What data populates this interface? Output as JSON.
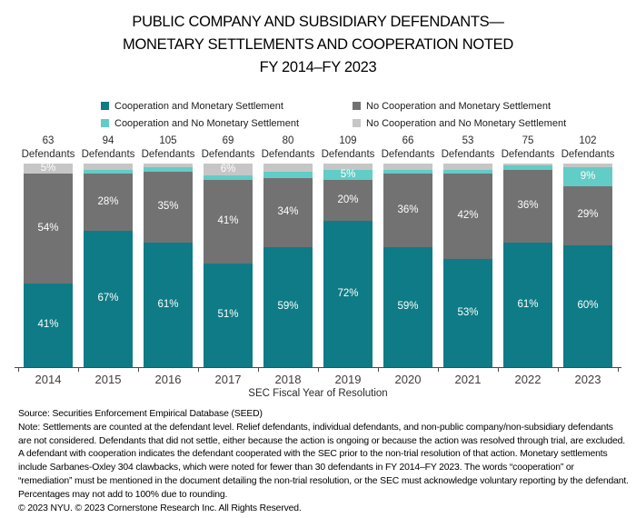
{
  "title": "PUBLIC COMPANY AND SUBSIDIARY DEFENDANTS—\nMONETARY SETTLEMENTS AND COOPERATION NOTED\nFY 2014–FY 2023",
  "chart_data": {
    "type": "bar",
    "subtype": "stacked-100-percent",
    "title": "PUBLIC COMPANY AND SUBSIDIARY DEFENDANTS—MONETARY SETTLEMENTS AND COOPERATION NOTED FY 2014–FY 2023",
    "xlabel": "SEC Fiscal Year of Resolution",
    "ylabel": "",
    "ylim": [
      0,
      100
    ],
    "grid": false,
    "legend_position": "top",
    "categories": [
      "2014",
      "2015",
      "2016",
      "2017",
      "2018",
      "2019",
      "2020",
      "2021",
      "2022",
      "2023"
    ],
    "defendants": [
      63,
      94,
      105,
      69,
      80,
      109,
      66,
      53,
      75,
      102
    ],
    "defendants_word": "Defendants",
    "stack_order_bottom_to_top": [
      "Cooperation and Monetary Settlement",
      "No Cooperation and Monetary Settlement",
      "Cooperation and No Monetary Settlement",
      "No Cooperation and No Monetary Settlement"
    ],
    "series": [
      {
        "name": "Cooperation and Monetary Settlement",
        "color": "#0e7b86",
        "values": [
          41,
          67,
          61,
          51,
          59,
          72,
          59,
          53,
          61,
          60
        ],
        "labels": [
          "41%",
          "67%",
          "61%",
          "51%",
          "59%",
          "72%",
          "59%",
          "53%",
          "61%",
          "60%"
        ]
      },
      {
        "name": "No Cooperation and Monetary Settlement",
        "color": "#727272",
        "values": [
          54,
          28,
          35,
          41,
          34,
          20,
          36,
          42,
          36,
          29
        ],
        "labels": [
          "54%",
          "28%",
          "35%",
          "41%",
          "34%",
          "20%",
          "36%",
          "42%",
          "36%",
          "29%"
        ]
      },
      {
        "name": "Cooperation and No Monetary Settlement",
        "color": "#62ccc6",
        "values": [
          0,
          2,
          2,
          2,
          3,
          5,
          2,
          2,
          2,
          9
        ],
        "labels": [
          "",
          "",
          "",
          "",
          "",
          "5%",
          "",
          "",
          "",
          "9%"
        ]
      },
      {
        "name": "No Cooperation and No Monetary Settlement",
        "color": "#c6c6c6",
        "values": [
          5,
          3,
          2,
          6,
          4,
          3,
          3,
          3,
          1,
          2
        ],
        "labels": [
          "5%",
          "",
          "",
          "6%",
          "",
          "",
          "",
          "",
          "",
          ""
        ]
      }
    ]
  },
  "footer": {
    "source": "Source: Securities Enforcement Empirical Database (SEED)",
    "note": "Note: Settlements are counted at the defendant level. Relief defendants, individual defendants, and non-public company/non-subsidiary defendants are not considered. Defendants that did not settle, either because the action is ongoing or because the action was resolved through trial, are excluded. A defendant with cooperation indicates the defendant cooperated with the SEC prior to the non-trial resolution of that action. Monetary settlements include Sarbanes-Oxley 304 clawbacks, which were noted for fewer than 30 defendants in FY 2014–FY 2023. The words “cooperation” or “remediation” must be mentioned in the document detailing the non-trial resolution, or the SEC must acknowledge voluntary reporting by the defendant. Percentages may not add to 100% due to rounding.",
    "copyright": "© 2023 NYU. © 2023 Cornerstone Research Inc. All Rights Reserved."
  }
}
